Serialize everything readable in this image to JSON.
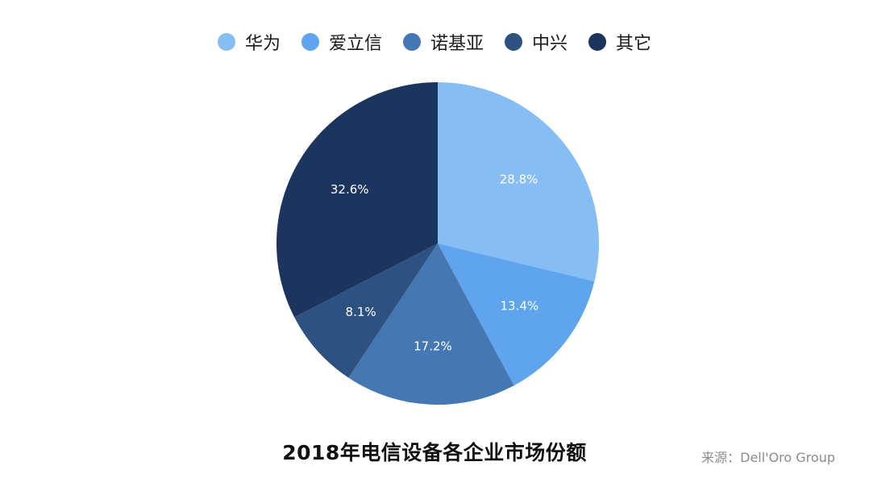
{
  "chart_data": {
    "type": "pie",
    "title": "2018年电信设备各企业市场份额",
    "source": "来源：Dell'Oro Group",
    "legend_position": "top-center",
    "categories": [
      "华为",
      "爱立信",
      "诺基亚",
      "中兴",
      "其它"
    ],
    "values": [
      28.8,
      13.4,
      17.2,
      8.1,
      32.6
    ],
    "value_labels": [
      "28.8%",
      "13.4%",
      "17.2%",
      "8.1%",
      "32.6%"
    ],
    "colors": [
      "#86bdf2",
      "#5ea5ee",
      "#4577b2",
      "#2d5282",
      "#1c355f"
    ]
  }
}
